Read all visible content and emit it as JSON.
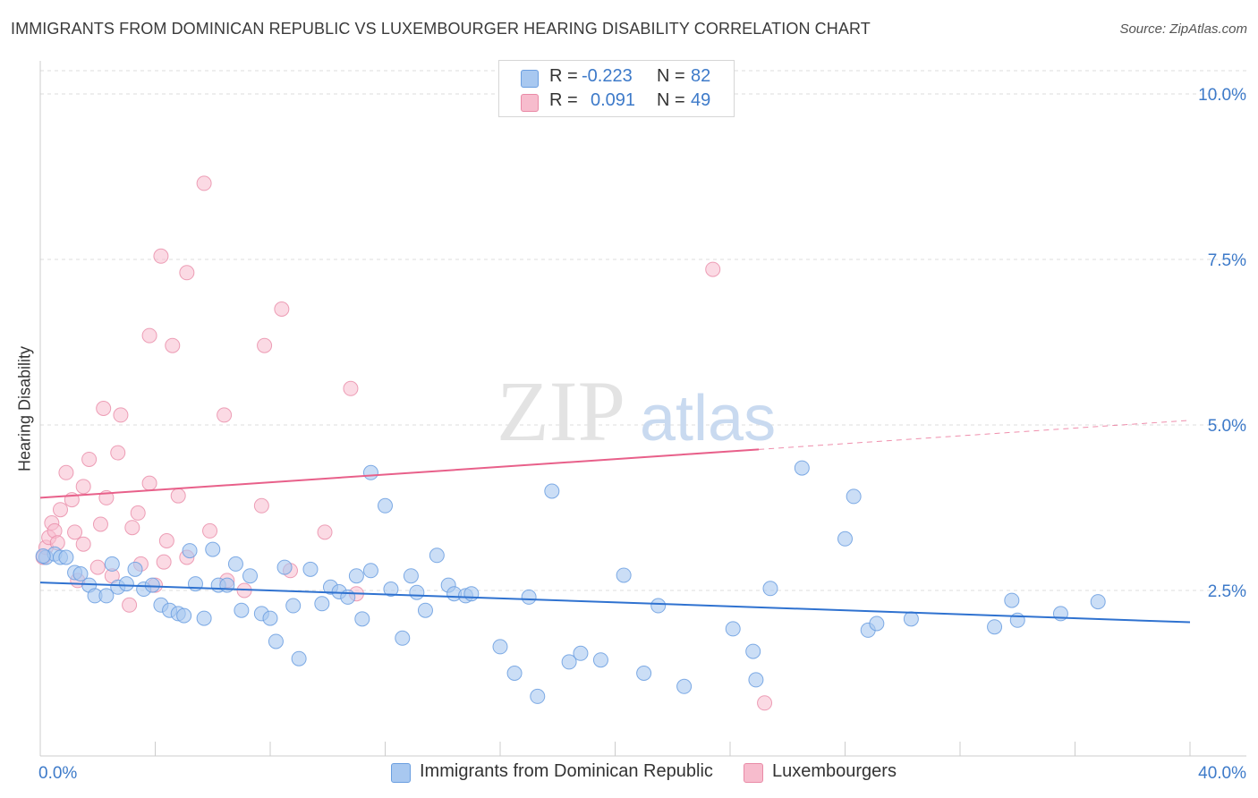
{
  "header": {
    "title": "IMMIGRANTS FROM DOMINICAN REPUBLIC VS LUXEMBOURGER HEARING DISABILITY CORRELATION CHART",
    "source": "Source: ZipAtlas.com"
  },
  "legend": {
    "blue": {
      "r_label": "R =",
      "r_value": "-0.223",
      "n_label": "N =",
      "n_value": "82"
    },
    "pink": {
      "r_label": "R =",
      "r_value": "0.091",
      "n_label": "N =",
      "n_value": "49"
    }
  },
  "bottom_legend": {
    "blue_label": "Immigrants from Dominican Republic",
    "pink_label": "Luxembourgers"
  },
  "watermark": {
    "zip": "ZIP",
    "atlas": "atlas"
  },
  "colors": {
    "blue_fill": "#a8c8f0",
    "blue_stroke": "#6a9ee0",
    "blue_line": "#2f72d0",
    "pink_fill": "#f7bccd",
    "pink_stroke": "#e98aa6",
    "pink_line": "#e8608a",
    "axis_text": "#3d7ac9",
    "grid": "#dddddd"
  },
  "chart_data": {
    "type": "scatter",
    "title": "IMMIGRANTS FROM DOMINICAN REPUBLIC VS LUXEMBOURGER HEARING DISABILITY CORRELATION CHART",
    "xlabel": "",
    "ylabel": "Hearing Disability",
    "xlim": [
      0,
      40
    ],
    "ylim": [
      0,
      10.5
    ],
    "x_tick_labels": [
      "0.0%",
      "40.0%"
    ],
    "y_ticks": [
      2.5,
      5.0,
      7.5,
      10.0
    ],
    "y_tick_labels": [
      "2.5%",
      "5.0%",
      "7.5%",
      "10.0%"
    ],
    "grid": "horizontal dashed",
    "legend_position": "top-center",
    "series": [
      {
        "name": "Immigrants from Dominican Republic",
        "trend": {
          "x": [
            0,
            40
          ],
          "y": [
            2.62,
            2.02
          ],
          "style": "solid"
        },
        "points": [
          [
            0.2,
            3.0
          ],
          [
            0.5,
            3.05
          ],
          [
            0.7,
            3.0
          ],
          [
            0.9,
            3.0
          ],
          [
            1.2,
            2.77
          ],
          [
            1.4,
            2.75
          ],
          [
            1.7,
            2.58
          ],
          [
            1.9,
            2.42
          ],
          [
            2.3,
            2.42
          ],
          [
            2.5,
            2.9
          ],
          [
            2.7,
            2.55
          ],
          [
            3.0,
            2.6
          ],
          [
            3.3,
            2.82
          ],
          [
            3.6,
            2.52
          ],
          [
            3.9,
            2.58
          ],
          [
            4.2,
            2.28
          ],
          [
            4.5,
            2.2
          ],
          [
            4.8,
            2.15
          ],
          [
            5.0,
            2.12
          ],
          [
            5.2,
            3.1
          ],
          [
            5.4,
            2.6
          ],
          [
            5.7,
            2.08
          ],
          [
            6.0,
            3.12
          ],
          [
            6.2,
            2.58
          ],
          [
            6.5,
            2.58
          ],
          [
            6.8,
            2.9
          ],
          [
            7.0,
            2.2
          ],
          [
            7.3,
            2.72
          ],
          [
            7.7,
            2.15
          ],
          [
            8.0,
            2.08
          ],
          [
            8.2,
            1.73
          ],
          [
            8.5,
            2.85
          ],
          [
            8.8,
            2.27
          ],
          [
            9.0,
            1.47
          ],
          [
            9.4,
            2.82
          ],
          [
            9.8,
            2.3
          ],
          [
            10.1,
            2.55
          ],
          [
            10.4,
            2.48
          ],
          [
            10.7,
            2.4
          ],
          [
            11.0,
            2.72
          ],
          [
            11.2,
            2.07
          ],
          [
            11.5,
            2.8
          ],
          [
            11.5,
            4.28
          ],
          [
            12.0,
            3.78
          ],
          [
            12.2,
            2.52
          ],
          [
            12.6,
            1.78
          ],
          [
            12.9,
            2.72
          ],
          [
            13.1,
            2.47
          ],
          [
            13.4,
            2.2
          ],
          [
            13.8,
            3.03
          ],
          [
            14.2,
            2.58
          ],
          [
            14.4,
            2.45
          ],
          [
            14.8,
            2.42
          ],
          [
            15.0,
            2.45
          ],
          [
            16.0,
            1.65
          ],
          [
            16.5,
            1.25
          ],
          [
            17.0,
            2.4
          ],
          [
            17.3,
            0.9
          ],
          [
            17.8,
            4.0
          ],
          [
            18.4,
            1.42
          ],
          [
            18.8,
            1.55
          ],
          [
            19.5,
            1.45
          ],
          [
            20.3,
            2.73
          ],
          [
            21.0,
            1.25
          ],
          [
            21.5,
            2.27
          ],
          [
            22.4,
            1.05
          ],
          [
            24.1,
            1.92
          ],
          [
            24.8,
            1.58
          ],
          [
            24.9,
            1.15
          ],
          [
            25.4,
            2.53
          ],
          [
            26.5,
            4.35
          ],
          [
            28.0,
            3.28
          ],
          [
            28.3,
            3.92
          ],
          [
            28.8,
            1.9
          ],
          [
            29.1,
            2.0
          ],
          [
            30.3,
            2.07
          ],
          [
            33.2,
            1.95
          ],
          [
            33.8,
            2.35
          ],
          [
            34.0,
            2.05
          ],
          [
            35.5,
            2.15
          ],
          [
            36.8,
            2.33
          ],
          [
            0.1,
            3.02
          ]
        ]
      },
      {
        "name": "Luxembourgers",
        "trend": {
          "x": [
            0,
            25
          ],
          "y": [
            3.9,
            4.63
          ],
          "x_dashed": [
            25,
            40
          ],
          "y_dashed": [
            4.63,
            5.07
          ],
          "style": "solid then dashed"
        },
        "points": [
          [
            0.1,
            3.0
          ],
          [
            0.2,
            3.15
          ],
          [
            0.3,
            3.3
          ],
          [
            0.4,
            3.52
          ],
          [
            0.5,
            3.4
          ],
          [
            0.6,
            3.22
          ],
          [
            0.7,
            3.72
          ],
          [
            0.9,
            4.28
          ],
          [
            1.1,
            3.87
          ],
          [
            1.2,
            3.38
          ],
          [
            1.3,
            2.65
          ],
          [
            1.5,
            4.07
          ],
          [
            1.5,
            3.2
          ],
          [
            1.7,
            4.48
          ],
          [
            2.0,
            2.85
          ],
          [
            2.1,
            3.5
          ],
          [
            2.2,
            5.25
          ],
          [
            2.3,
            3.9
          ],
          [
            2.5,
            2.72
          ],
          [
            2.7,
            4.58
          ],
          [
            2.8,
            5.15
          ],
          [
            3.1,
            2.28
          ],
          [
            3.2,
            3.45
          ],
          [
            3.4,
            3.67
          ],
          [
            3.5,
            2.9
          ],
          [
            3.8,
            4.12
          ],
          [
            3.8,
            6.35
          ],
          [
            4.0,
            2.58
          ],
          [
            4.2,
            7.55
          ],
          [
            4.3,
            2.93
          ],
          [
            4.4,
            3.25
          ],
          [
            4.6,
            6.2
          ],
          [
            4.8,
            3.93
          ],
          [
            5.1,
            7.3
          ],
          [
            5.1,
            3.0
          ],
          [
            5.7,
            8.65
          ],
          [
            5.9,
            3.4
          ],
          [
            6.4,
            5.15
          ],
          [
            7.1,
            2.5
          ],
          [
            7.7,
            3.78
          ],
          [
            7.8,
            6.2
          ],
          [
            8.4,
            6.75
          ],
          [
            8.7,
            2.8
          ],
          [
            9.9,
            3.38
          ],
          [
            10.8,
            5.55
          ],
          [
            11.0,
            2.45
          ],
          [
            23.4,
            7.35
          ],
          [
            25.2,
            0.8
          ],
          [
            6.5,
            2.65
          ]
        ]
      }
    ]
  }
}
